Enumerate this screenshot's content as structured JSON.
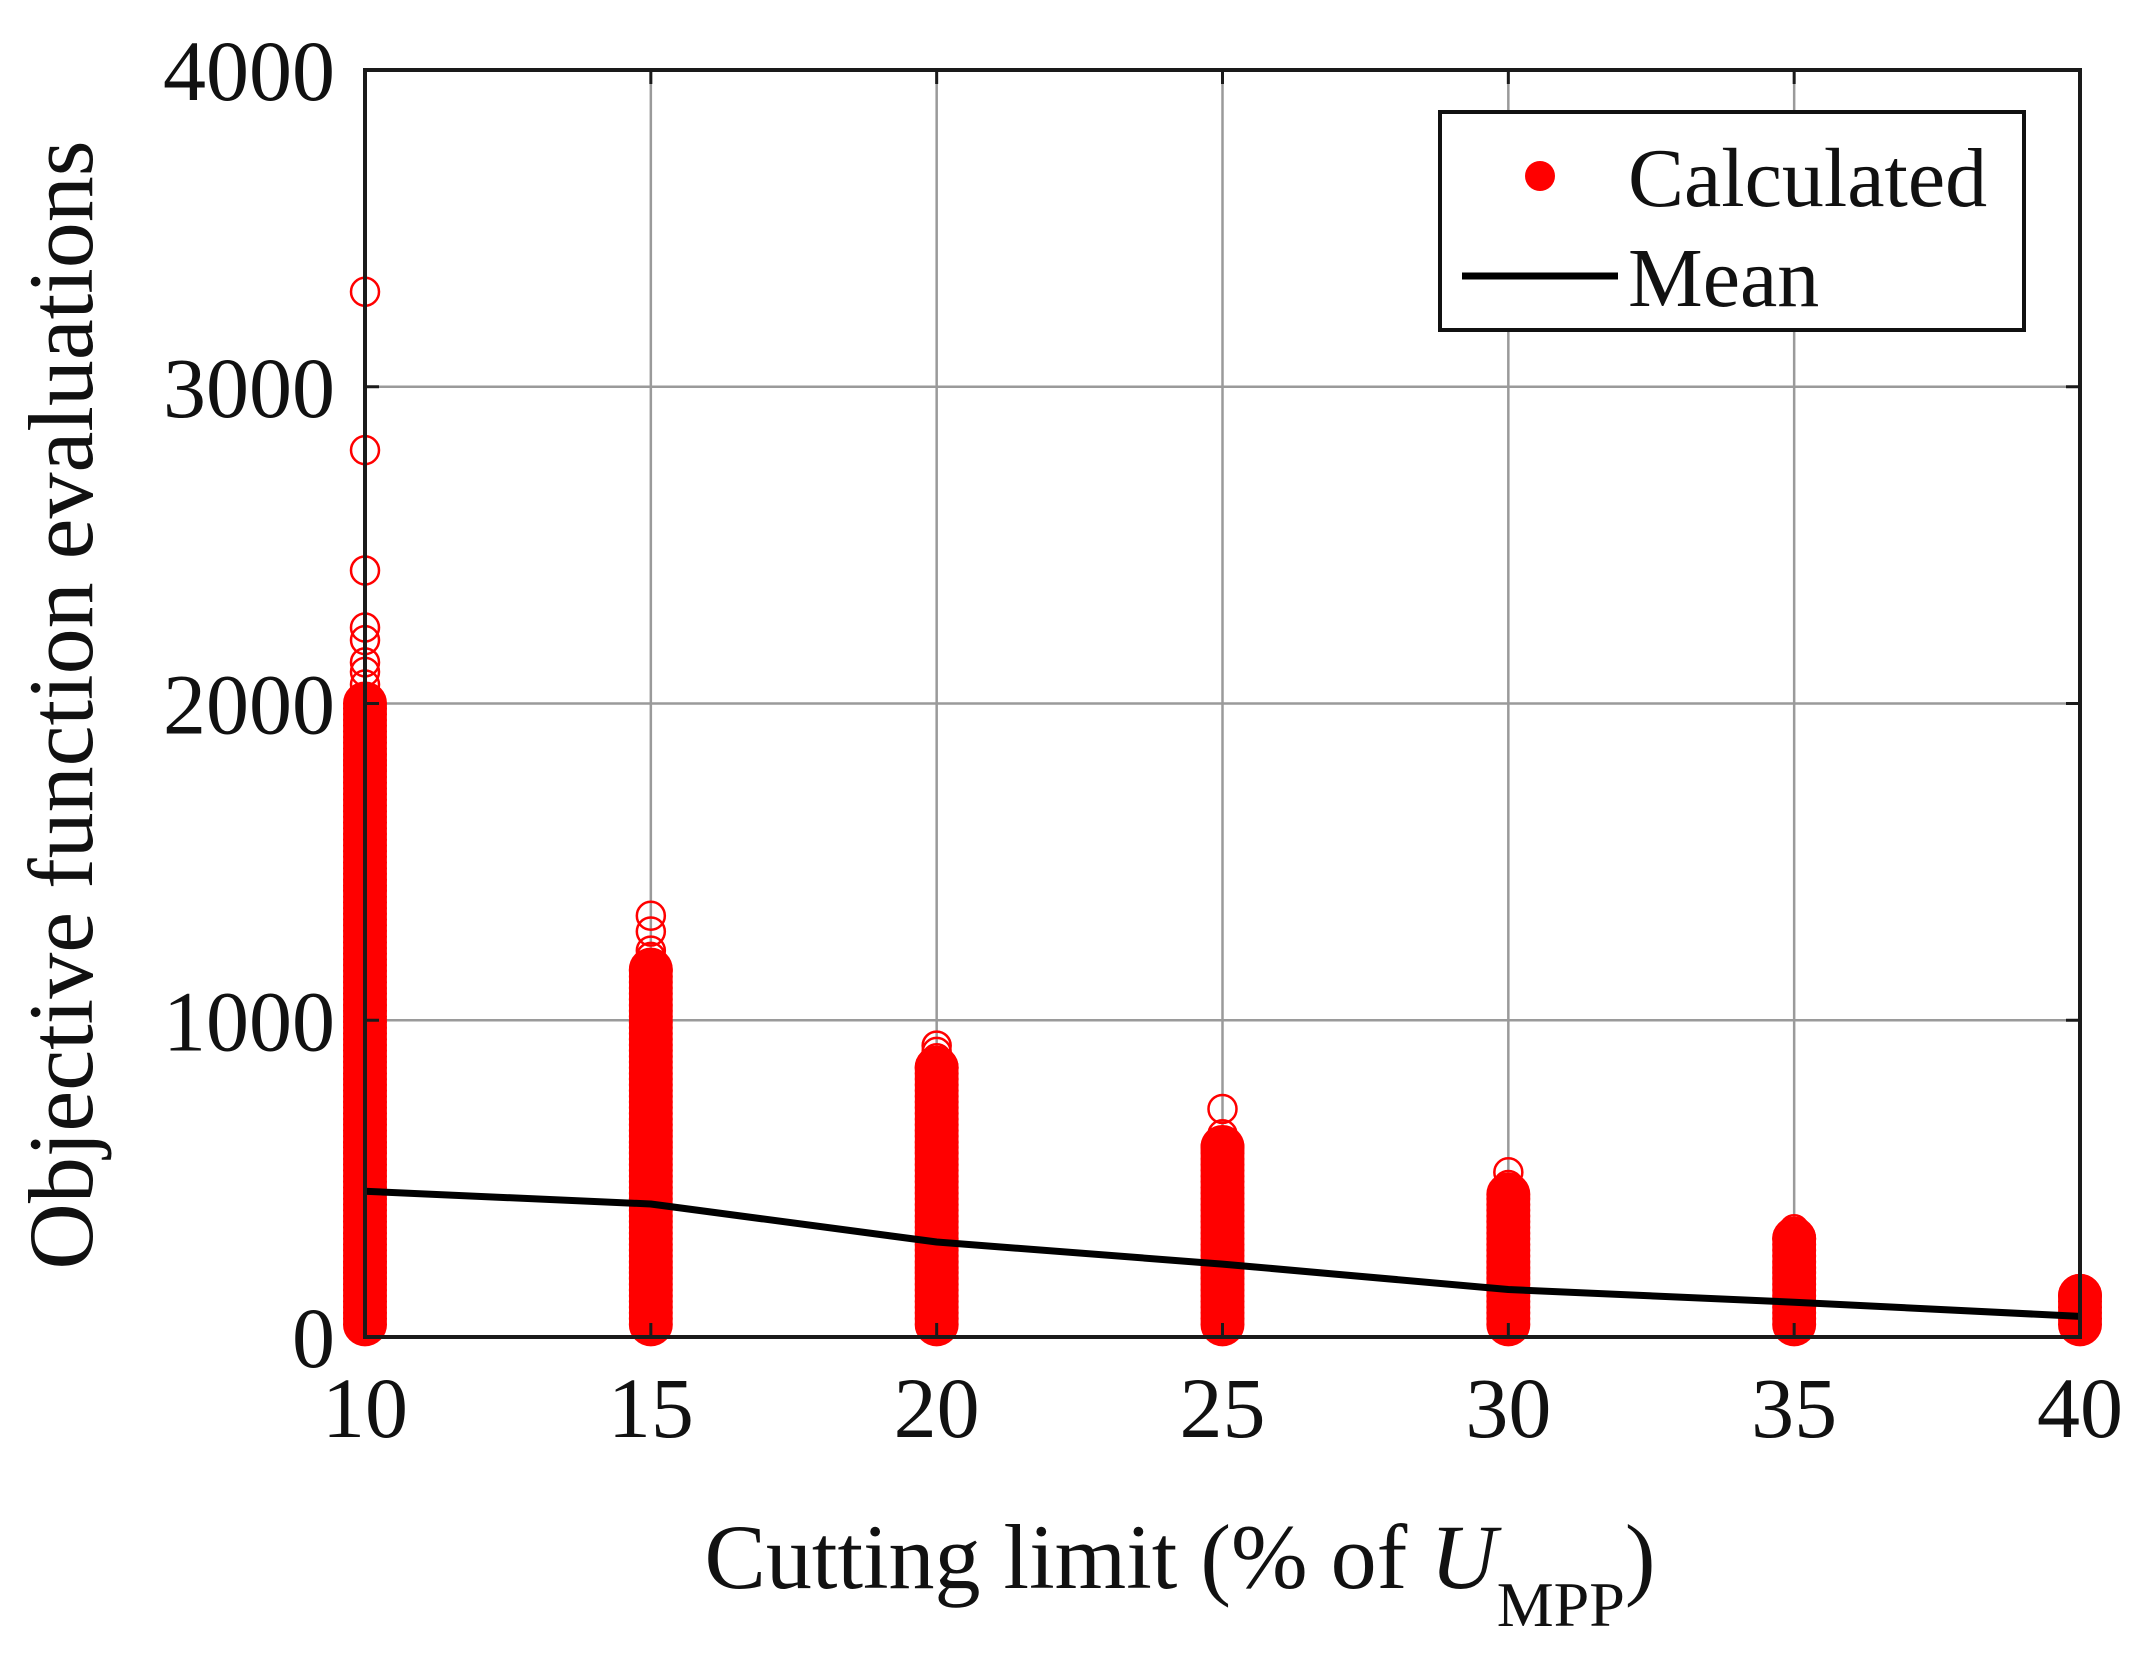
{
  "chart_data": {
    "type": "scatter",
    "title": "",
    "xlabel": {
      "prefix": "Cutting limit (% of ",
      "var": "U",
      "sub": "MPP",
      "suffix": ")"
    },
    "ylabel": "Objective function evaluations",
    "xlim": [
      10,
      40
    ],
    "ylim": [
      0,
      4000
    ],
    "xticks": [
      "10",
      "15",
      "20",
      "25",
      "30",
      "35",
      "40"
    ],
    "yticks": [
      "0",
      "1000",
      "2000",
      "3000",
      "4000"
    ],
    "grid": true,
    "legend_position": "top-right",
    "legend": [
      "Calculated",
      "Mean"
    ],
    "colors": {
      "calculated": "#ff0000",
      "mean": "#000000"
    },
    "series": [
      {
        "name": "Calculated",
        "style": "open-circle markers",
        "groups": [
          {
            "x": 10,
            "min": 40,
            "dense_max": 2000,
            "outliers": [
              2060,
              2100,
              2130,
              2200,
              2240,
              2420,
              2800,
              3300
            ]
          },
          {
            "x": 15,
            "min": 40,
            "dense_max": 1160,
            "outliers": [
              1200,
              1220,
              1280,
              1330
            ]
          },
          {
            "x": 20,
            "min": 40,
            "dense_max": 850,
            "outliers": [
              880,
              900,
              920
            ]
          },
          {
            "x": 25,
            "min": 40,
            "dense_max": 600,
            "outliers": [
              640,
              720
            ]
          },
          {
            "x": 30,
            "min": 40,
            "dense_max": 450,
            "outliers": [
              480,
              520
            ]
          },
          {
            "x": 35,
            "min": 40,
            "dense_max": 310,
            "outliers": [
              340
            ]
          },
          {
            "x": 40,
            "min": 40,
            "dense_max": 130,
            "outliers": [
              150
            ]
          }
        ]
      },
      {
        "name": "Mean",
        "style": "line",
        "x": [
          10,
          15,
          20,
          25,
          30,
          35,
          40
        ],
        "y": [
          460,
          420,
          300,
          230,
          150,
          110,
          65
        ]
      }
    ]
  }
}
